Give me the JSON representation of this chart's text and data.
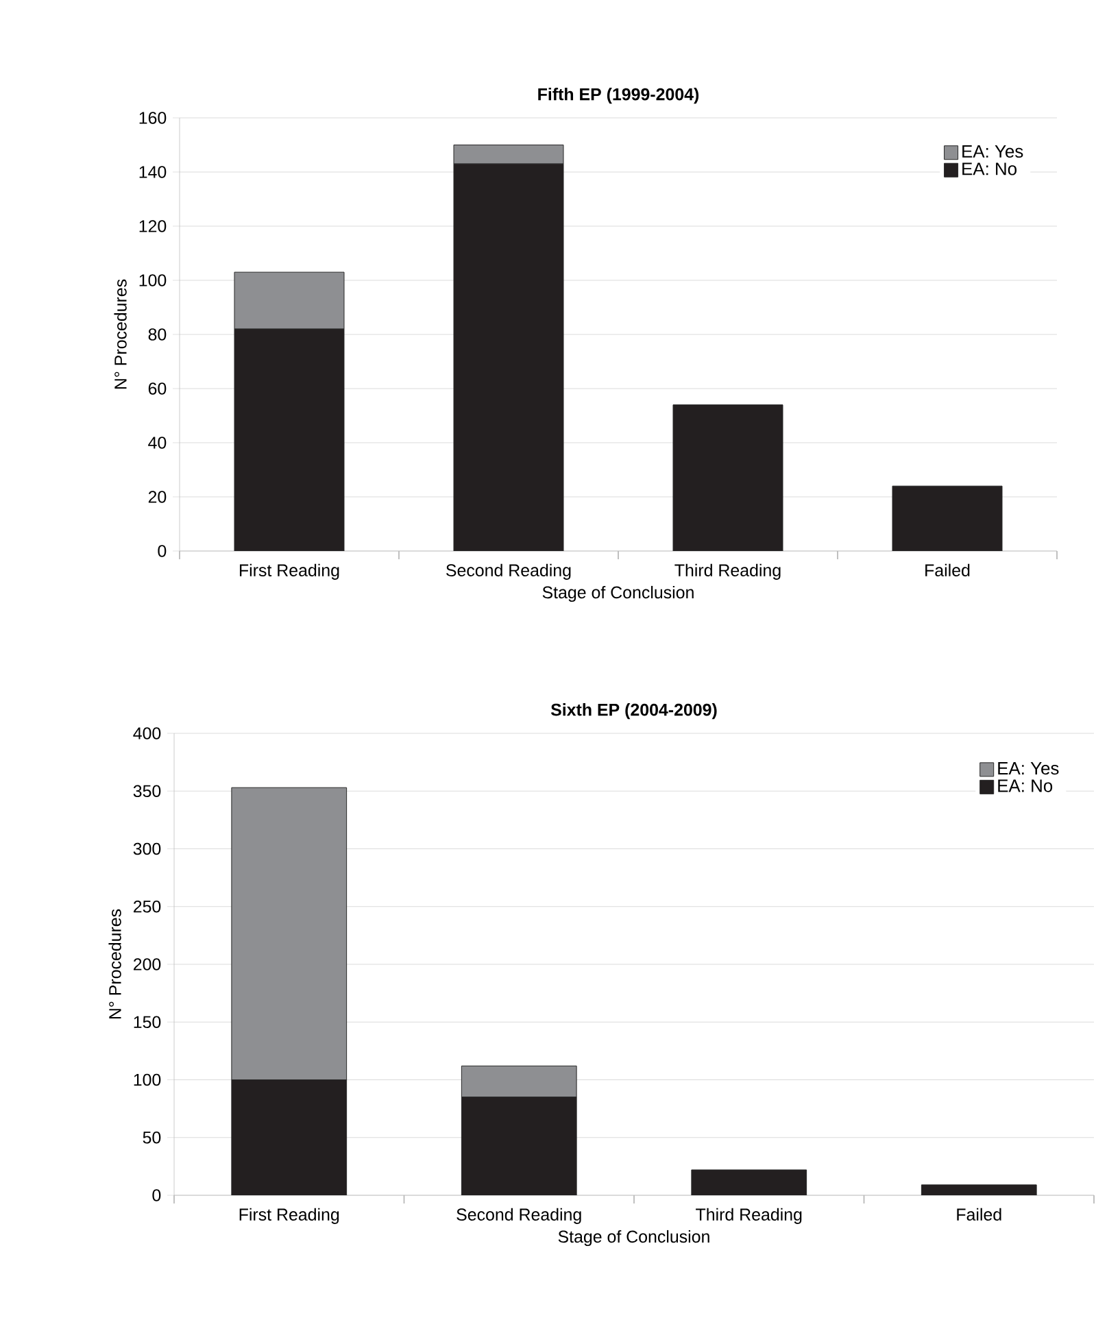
{
  "chart_data": [
    {
      "type": "bar",
      "title": "Fifth EP (1999-2004)",
      "xlabel": "Stage of Conclusion",
      "ylabel": "N° Procedures",
      "categories": [
        "First Reading",
        "Second Reading",
        "Third Reading",
        "Failed"
      ],
      "stacked": true,
      "ylim": [
        0,
        160
      ],
      "yticks": [
        0,
        20,
        40,
        60,
        80,
        100,
        120,
        140,
        160
      ],
      "grid": "y",
      "legend": "top right",
      "series": [
        {
          "name": "EA: No",
          "color": "#231f20",
          "values": [
            82,
            143,
            54,
            24
          ]
        },
        {
          "name": "EA: Yes",
          "color": "#8e8f92",
          "values": [
            21,
            7,
            0,
            0
          ]
        }
      ]
    },
    {
      "type": "bar",
      "title": "Sixth EP (2004-2009)",
      "xlabel": "Stage of Conclusion",
      "ylabel": "N° Procedures",
      "categories": [
        "First Reading",
        "Second Reading",
        "Third Reading",
        "Failed"
      ],
      "stacked": true,
      "ylim": [
        0,
        400
      ],
      "yticks": [
        0,
        50,
        100,
        150,
        200,
        250,
        300,
        350,
        400
      ],
      "grid": "y",
      "legend": "top right",
      "series": [
        {
          "name": "EA: No",
          "color": "#231f20",
          "values": [
            100,
            85,
            22,
            9
          ]
        },
        {
          "name": "EA: Yes",
          "color": "#8e8f92",
          "values": [
            253,
            27,
            0,
            0
          ]
        }
      ]
    }
  ]
}
